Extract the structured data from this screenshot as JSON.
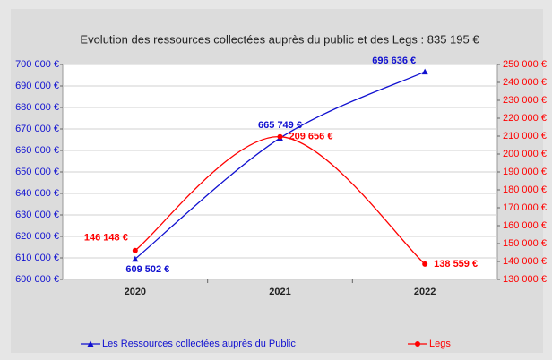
{
  "chart_data": {
    "type": "line",
    "title": "Evolution des ressources collectées auprès du public et des Legs : 835 195 €",
    "categories": [
      "2020",
      "2021",
      "2022"
    ],
    "series": [
      {
        "name": "Les Ressources collectées auprès du Public",
        "color": "#1010d0",
        "values": [
          609502,
          665749,
          696636
        ],
        "value_labels": [
          "609 502 €",
          "665 749 €",
          "696 636 €"
        ]
      },
      {
        "name": "Legs",
        "color": "#ff0000",
        "axis": "y2",
        "values": [
          146148,
          209656,
          138559
        ],
        "value_labels": [
          "146 148 €",
          "209 656 €",
          "138 559 €"
        ]
      }
    ],
    "ylim": [
      600000,
      700000
    ],
    "yticks": [
      {
        "value": 600000,
        "label": "600 000 €"
      },
      {
        "value": 610000,
        "label": "610 000 €"
      },
      {
        "value": 620000,
        "label": "620 000 €"
      },
      {
        "value": 630000,
        "label": "630 000 €"
      },
      {
        "value": 640000,
        "label": "640 000 €"
      },
      {
        "value": 650000,
        "label": "650 000 €"
      },
      {
        "value": 660000,
        "label": "660 000 €"
      },
      {
        "value": 670000,
        "label": "670 000 €"
      },
      {
        "value": 680000,
        "label": "680 000 €"
      },
      {
        "value": 690000,
        "label": "690 000 €"
      },
      {
        "value": 700000,
        "label": "700 000 €"
      }
    ],
    "y2lim": [
      130000,
      250000
    ],
    "y2ticks": [
      {
        "value": 130000,
        "label": "130 000 €"
      },
      {
        "value": 140000,
        "label": "140 000 €"
      },
      {
        "value": 150000,
        "label": "150 000 €"
      },
      {
        "value": 160000,
        "label": "160 000 €"
      },
      {
        "value": 170000,
        "label": "170 000 €"
      },
      {
        "value": 180000,
        "label": "180 000 €"
      },
      {
        "value": 190000,
        "label": "190 000 €"
      },
      {
        "value": 200000,
        "label": "200 000 €"
      },
      {
        "value": 210000,
        "label": "210 000 €"
      },
      {
        "value": 220000,
        "label": "220 000 €"
      },
      {
        "value": 230000,
        "label": "230 000 €"
      },
      {
        "value": 240000,
        "label": "240 000 €"
      },
      {
        "value": 250000,
        "label": "250 000 €"
      }
    ],
    "grid": true,
    "legend": "bottom"
  }
}
